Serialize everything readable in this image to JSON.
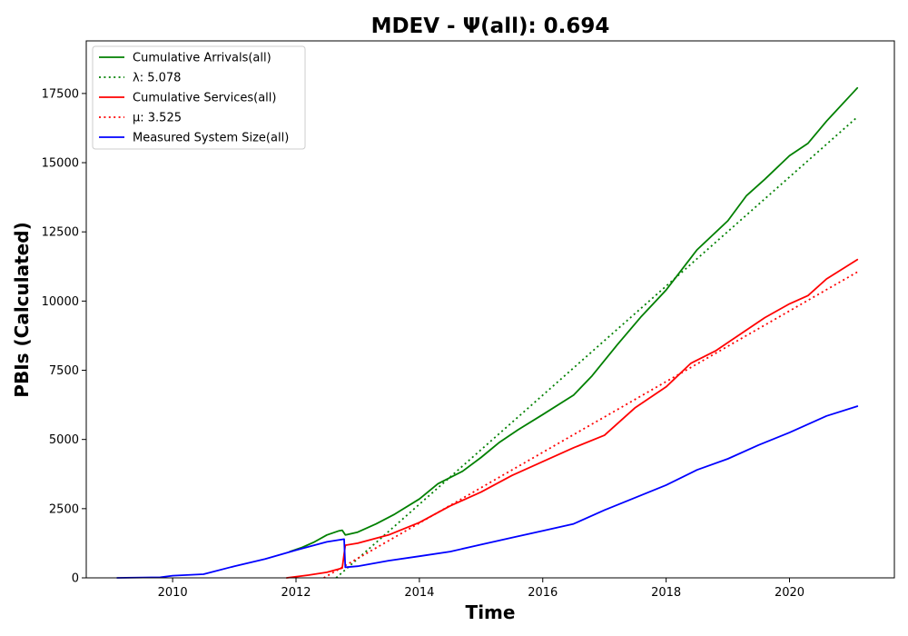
{
  "chart_data": {
    "type": "line",
    "title": "MDEV -  Ψ(all): 0.694",
    "xlabel": "Time",
    "ylabel": "PBIs (Calculated)",
    "xlim": [
      2008.6,
      2021.7
    ],
    "ylim": [
      0,
      19400
    ],
    "xticks": [
      2010,
      2012,
      2014,
      2016,
      2018,
      2020
    ],
    "yticks": [
      0,
      2500,
      5000,
      7500,
      10000,
      12500,
      15000,
      17500
    ],
    "grid": false,
    "legend_position": "top-left",
    "series": [
      {
        "name": "Cumulative Arrivals(all)",
        "color": "#008000",
        "style": "solid",
        "x": [
          2011.9,
          2012.1,
          2012.3,
          2012.5,
          2012.7,
          2012.75,
          2012.8,
          2013.0,
          2013.3,
          2013.6,
          2014.0,
          2014.3,
          2014.7,
          2015.0,
          2015.3,
          2015.6,
          2016.0,
          2016.5,
          2016.8,
          2017.2,
          2017.6,
          2018.0,
          2018.5,
          2019.0,
          2019.3,
          2019.6,
          2020.0,
          2020.3,
          2020.6,
          2021.1
        ],
        "values": [
          950,
          1100,
          1300,
          1550,
          1700,
          1720,
          1550,
          1650,
          1950,
          2300,
          2850,
          3400,
          3850,
          4350,
          4900,
          5350,
          5900,
          6600,
          7300,
          8400,
          9450,
          10400,
          11850,
          12900,
          13800,
          14400,
          15250,
          15700,
          16500,
          17700
        ]
      },
      {
        "name": "λ: 5.078",
        "color": "#008000",
        "style": "dotted",
        "x": [
          2012.65,
          2021.1
        ],
        "values": [
          0,
          16650
        ]
      },
      {
        "name": "Cumulative Services(all)",
        "color": "#ff0000",
        "style": "solid",
        "x": [
          2011.85,
          2012.2,
          2012.5,
          2012.75,
          2012.8,
          2013.0,
          2013.5,
          2014.0,
          2014.5,
          2015.0,
          2015.5,
          2016.0,
          2016.5,
          2017.0,
          2017.5,
          2018.0,
          2018.4,
          2018.8,
          2019.2,
          2019.6,
          2020.0,
          2020.3,
          2020.6,
          2021.1
        ],
        "values": [
          0,
          100,
          200,
          350,
          1180,
          1250,
          1550,
          2000,
          2600,
          3100,
          3700,
          4200,
          4700,
          5150,
          6150,
          6900,
          7750,
          8200,
          8800,
          9400,
          9900,
          10200,
          10800,
          11500
        ]
      },
      {
        "name": "μ: 3.525",
        "color": "#ff0000",
        "style": "dotted",
        "x": [
          2012.45,
          2021.1
        ],
        "values": [
          0,
          11050
        ]
      },
      {
        "name": "Measured System Size(all)",
        "color": "#0000ff",
        "style": "solid",
        "x": [
          2009.1,
          2009.8,
          2010.0,
          2010.5,
          2011.0,
          2011.5,
          2012.0,
          2012.5,
          2012.78,
          2012.8,
          2013.0,
          2013.5,
          2014.0,
          2014.5,
          2015.0,
          2015.5,
          2016.0,
          2016.5,
          2017.0,
          2017.5,
          2018.0,
          2018.5,
          2019.0,
          2019.5,
          2020.0,
          2020.3,
          2020.6,
          2021.1
        ],
        "values": [
          0,
          20,
          80,
          130,
          420,
          680,
          1000,
          1300,
          1400,
          380,
          420,
          620,
          780,
          950,
          1200,
          1450,
          1700,
          1950,
          2450,
          2900,
          3350,
          3900,
          4300,
          4800,
          5250,
          5550,
          5850,
          6200
        ]
      }
    ]
  }
}
